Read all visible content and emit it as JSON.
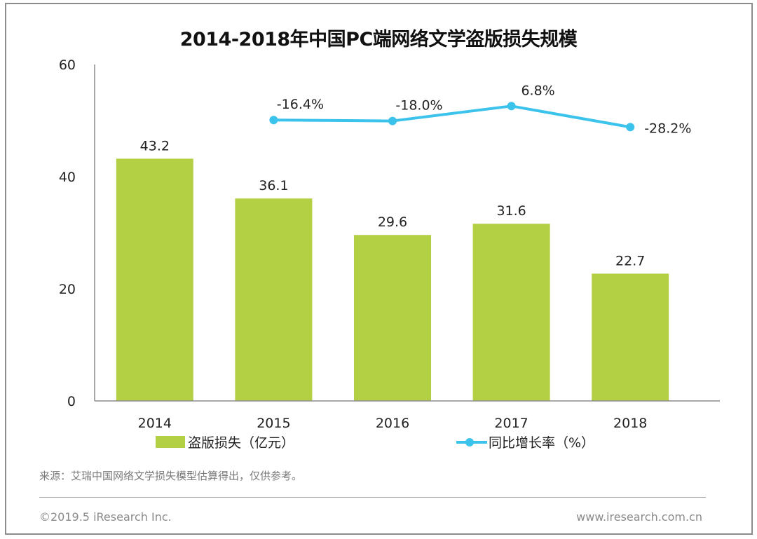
{
  "chart_data": {
    "type": "bar",
    "title": "2014-2018年中国PC端网络文学盗版损失规模",
    "categories": [
      "2014",
      "2015",
      "2016",
      "2017",
      "2018"
    ],
    "xlabel": "",
    "ylabel": "",
    "ylim": [
      0,
      60
    ],
    "yticks": [
      0,
      20,
      40,
      60
    ],
    "grid": false,
    "legend_position": "bottom",
    "series": [
      {
        "name": "盗版损失（亿元）",
        "type": "bar",
        "color": "#b3d044",
        "values": [
          43.2,
          36.1,
          29.6,
          31.6,
          22.7
        ],
        "labels": [
          "43.2",
          "36.1",
          "29.6",
          "31.6",
          "22.7"
        ]
      },
      {
        "name": "同比增长率（%）",
        "type": "line",
        "axis": "secondary",
        "color": "#3cc3ec",
        "values": [
          null,
          -16.4,
          -18.0,
          6.8,
          -28.2
        ],
        "labels": [
          "",
          "-16.4%",
          "-18.0%",
          "6.8%",
          "-28.2%"
        ]
      }
    ],
    "secondary_ylim": [
      -484,
      76
    ]
  },
  "footer": {
    "source": "来源：艾瑞中国网络文学损失模型估算得出，仅供参考。",
    "copyright": "©2019.5 iResearch Inc.",
    "website": "www.iresearch.com.cn"
  }
}
